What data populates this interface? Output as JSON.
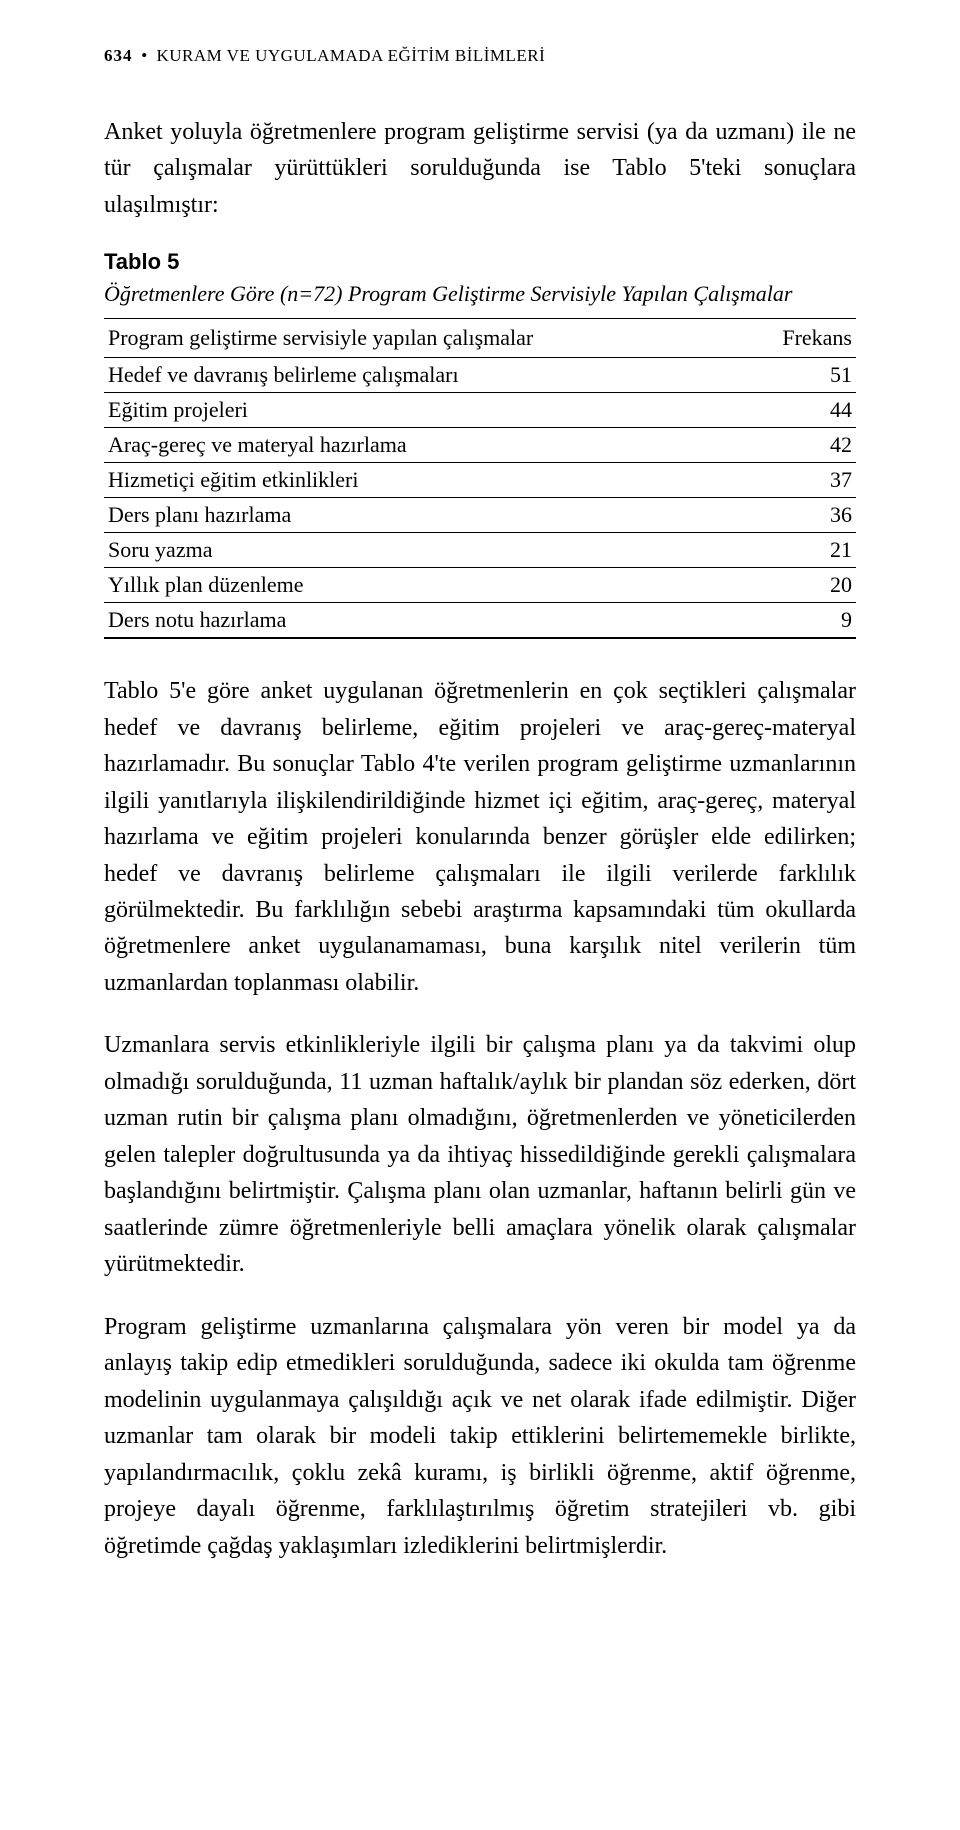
{
  "running_head": {
    "page_number": "634",
    "bullet": "•",
    "journal": "KURAM VE UYGULAMADA EĞİTİM BİLİMLERİ"
  },
  "para_intro": "Anket yoluyla öğretmenlere program geliştirme servisi (ya da uzmanı) ile ne tür çalışmalar yürüttükleri sorulduğunda ise Tablo 5'teki sonuçlara ulaşılmıştır:",
  "table5": {
    "title": "Tablo 5",
    "subtitle": "Öğretmenlere Göre (n=72) Program Geliştirme Servisiyle Yapılan Çalışmalar",
    "col_label": "Program geliştirme servisiyle yapılan çalışmalar",
    "col_freq": "Frekans",
    "rows": [
      {
        "label": "Hedef ve davranış belirleme çalışmaları",
        "value": "51"
      },
      {
        "label": "Eğitim projeleri",
        "value": "44"
      },
      {
        "label": "Araç-gereç ve materyal hazırlama",
        "value": "42"
      },
      {
        "label": "Hizmetiçi eğitim etkinlikleri",
        "value": "37"
      },
      {
        "label": "Ders planı hazırlama",
        "value": "36"
      },
      {
        "label": "Soru yazma",
        "value": "21"
      },
      {
        "label": "Yıllık plan düzenleme",
        "value": "20"
      },
      {
        "label": "Ders notu hazırlama",
        "value": "9"
      }
    ]
  },
  "para1": "Tablo 5'e göre anket uygulanan öğretmenlerin en çok seçtikleri çalışmalar hedef ve davranış belirleme, eğitim projeleri ve araç-gereç-materyal hazırlamadır. Bu sonuçlar Tablo 4'te verilen program geliştirme uzmanlarının ilgili yanıtlarıyla ilişkilendirildiğinde hizmet içi eğitim, araç-gereç, materyal hazırlama ve eğitim projeleri konularında benzer görüşler elde edilirken; hedef ve davranış belirleme çalışmaları ile ilgili verilerde farklılık görülmektedir. Bu farklılığın sebebi araştırma kapsamındaki tüm okullarda öğretmenlere anket uygulanamaması, buna karşılık nitel verilerin tüm uzmanlardan toplanması olabilir.",
  "para2": "Uzmanlara servis etkinlikleriyle ilgili bir çalışma planı ya da takvimi olup olmadığı sorulduğunda, 11 uzman haftalık/aylık bir plandan söz ederken, dört uzman rutin bir çalışma planı olmadığını, öğretmenlerden ve yöneticilerden gelen talepler doğrultusunda ya da ihtiyaç hissedildiğinde gerekli çalışmalara başlandığını belirtmiştir. Çalışma planı olan uzmanlar, haftanın belirli gün ve saatlerinde zümre öğretmenleriyle belli amaçlara yönelik olarak çalışmalar yürütmektedir.",
  "para3": "Program geliştirme uzmanlarına çalışmalara yön veren bir model ya da anlayış takip edip etmedikleri sorulduğunda, sadece iki okulda tam öğrenme modelinin uygulanmaya çalışıldığı açık ve net olarak ifade edilmiştir. Diğer uzmanlar tam olarak bir modeli takip ettiklerini belirtememekle birlikte, yapılandırmacılık, çoklu zekâ kuramı, iş birlikli öğrenme, aktif öğrenme, projeye dayalı öğrenme, farklılaştırılmış öğretim stratejileri vb. gibi öğretimde çağdaş yaklaşımları izlediklerini belirtmişlerdir."
}
